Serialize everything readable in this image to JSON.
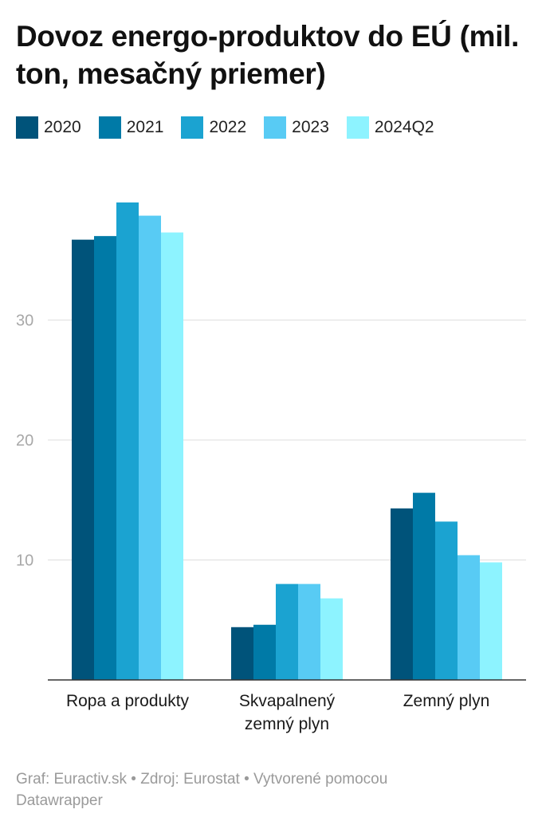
{
  "title": "Dovoz energo-produktov do EÚ (mil. ton, mesačný priemer)",
  "footer": "Graf: Euractiv.sk • Zdroj: Eurostat • Vytvorené pomocou Datawrapper",
  "chart_data": {
    "type": "bar",
    "title": "Dovoz energo-produktov do EÚ (mil. ton, mesačný priemer)",
    "categories": [
      [
        "Ropa a produkty"
      ],
      [
        "Skvapalnený",
        "zemný plyn"
      ],
      [
        "Zemný plyn"
      ]
    ],
    "series": [
      {
        "name": "2020",
        "color": "#00537a",
        "values": [
          36.7,
          4.4,
          14.3
        ]
      },
      {
        "name": "2021",
        "color": "#007aa7",
        "values": [
          37.0,
          4.6,
          15.6
        ]
      },
      {
        "name": "2022",
        "color": "#1ba3d1",
        "values": [
          39.8,
          8.0,
          13.2
        ]
      },
      {
        "name": "2023",
        "color": "#58cbf4",
        "values": [
          38.7,
          8.0,
          10.4
        ]
      },
      {
        "name": "2024Q2",
        "color": "#8df3ff",
        "values": [
          37.3,
          6.8,
          9.8
        ]
      }
    ],
    "yticks": [
      10,
      20,
      30
    ],
    "ylim": [
      0,
      40
    ],
    "grid": true,
    "legend": "top-left"
  }
}
